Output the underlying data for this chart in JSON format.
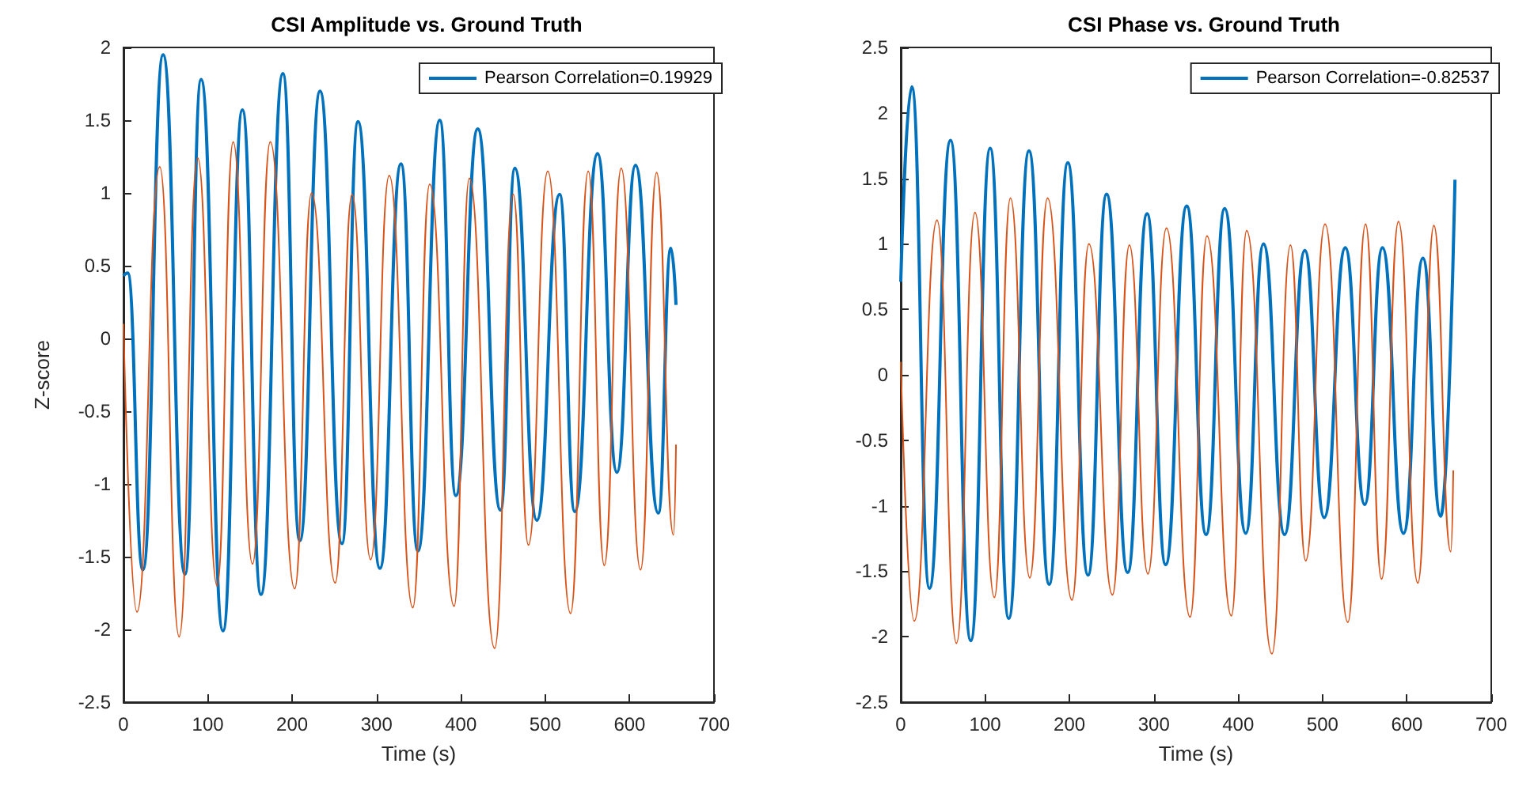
{
  "chart_data": [
    {
      "type": "line",
      "title": "CSI Amplitude vs. Ground Truth",
      "xlabel": "Time (s)",
      "ylabel": "Z-score",
      "xlim": [
        0,
        700
      ],
      "xticks": [
        0,
        100,
        200,
        300,
        400,
        500,
        600,
        700
      ],
      "ylim": [
        -2.5,
        2
      ],
      "yticks": [
        -2.5,
        -2,
        -1.5,
        -1,
        -0.5,
        0,
        0.5,
        1,
        1.5,
        2
      ],
      "legend": "top right",
      "marker": "none",
      "series": [
        {
          "name": "Pearson Correlation=0.19929",
          "color": "#0072bd",
          "x": [
            0,
            5,
            23,
            47,
            73,
            92,
            118,
            141,
            163,
            189,
            209,
            233,
            259,
            278,
            304,
            329,
            349,
            375,
            394,
            420,
            447,
            464,
            490,
            517,
            535,
            562,
            585,
            607,
            634,
            649,
            655
          ],
          "values": [
            0.43,
            0.45,
            -1.59,
            1.95,
            -1.62,
            1.78,
            -2.01,
            1.57,
            -1.76,
            1.82,
            -1.39,
            1.7,
            -1.41,
            1.49,
            -1.58,
            1.2,
            -1.46,
            1.5,
            -1.08,
            1.44,
            -1.18,
            1.17,
            -1.25,
            0.99,
            -1.19,
            1.27,
            -0.92,
            1.19,
            -1.2,
            0.62,
            0.23
          ]
        },
        {
          "color": "#d95319",
          "x": [
            0,
            16,
            43,
            66,
            88,
            111,
            130,
            153,
            174,
            203,
            223,
            251,
            271,
            293,
            315,
            343,
            363,
            392,
            410,
            440,
            462,
            480,
            503,
            530,
            551,
            570,
            590,
            613,
            632,
            652,
            655
          ],
          "values": [
            0.1,
            -1.88,
            1.18,
            -2.05,
            1.24,
            -1.7,
            1.35,
            -1.55,
            1.35,
            -1.72,
            1.0,
            -1.68,
            0.99,
            -1.52,
            1.12,
            -1.85,
            1.06,
            -1.84,
            1.1,
            -2.13,
            0.99,
            -1.42,
            1.15,
            -1.89,
            1.15,
            -1.56,
            1.17,
            -1.59,
            1.14,
            -1.35,
            -0.73
          ]
        }
      ]
    },
    {
      "type": "line",
      "title": "CSI Phase vs. Ground Truth",
      "xlabel": "Time (s)",
      "xlim": [
        0,
        700
      ],
      "xticks": [
        0,
        100,
        200,
        300,
        400,
        500,
        600,
        700
      ],
      "ylim": [
        -2.5,
        2.5
      ],
      "yticks": [
        -2.5,
        -2,
        -1.5,
        -1,
        -0.5,
        0,
        0.5,
        1,
        1.5,
        2,
        2.5
      ],
      "legend": "top right",
      "marker": "none",
      "series": [
        {
          "name": "Pearson Correlation=-0.82537",
          "color": "#0072bd",
          "x": [
            0,
            13,
            34,
            59,
            83,
            106,
            128,
            152,
            176,
            198,
            222,
            244,
            269,
            292,
            314,
            339,
            362,
            384,
            409,
            430,
            455,
            479,
            502,
            527,
            550,
            571,
            596,
            619,
            640,
            657
          ],
          "values": [
            0.71,
            2.2,
            -1.63,
            1.79,
            -2.03,
            1.73,
            -1.86,
            1.71,
            -1.6,
            1.62,
            -1.53,
            1.38,
            -1.51,
            1.23,
            -1.45,
            1.29,
            -1.22,
            1.27,
            -1.21,
            1.0,
            -1.22,
            0.95,
            -1.09,
            0.97,
            -0.99,
            0.97,
            -1.21,
            0.89,
            -1.08,
            1.49
          ]
        },
        {
          "color": "#d95319",
          "x": [
            0,
            16,
            43,
            66,
            88,
            111,
            130,
            153,
            174,
            203,
            223,
            251,
            271,
            293,
            315,
            343,
            363,
            392,
            410,
            440,
            462,
            480,
            503,
            530,
            551,
            570,
            590,
            613,
            632,
            652,
            655
          ],
          "values": [
            0.1,
            -1.88,
            1.18,
            -2.05,
            1.24,
            -1.7,
            1.35,
            -1.55,
            1.35,
            -1.72,
            1.0,
            -1.68,
            0.99,
            -1.52,
            1.12,
            -1.85,
            1.06,
            -1.84,
            1.1,
            -2.13,
            0.99,
            -1.42,
            1.15,
            -1.89,
            1.15,
            -1.56,
            1.17,
            -1.59,
            1.14,
            -1.35,
            -0.73
          ]
        }
      ]
    }
  ]
}
